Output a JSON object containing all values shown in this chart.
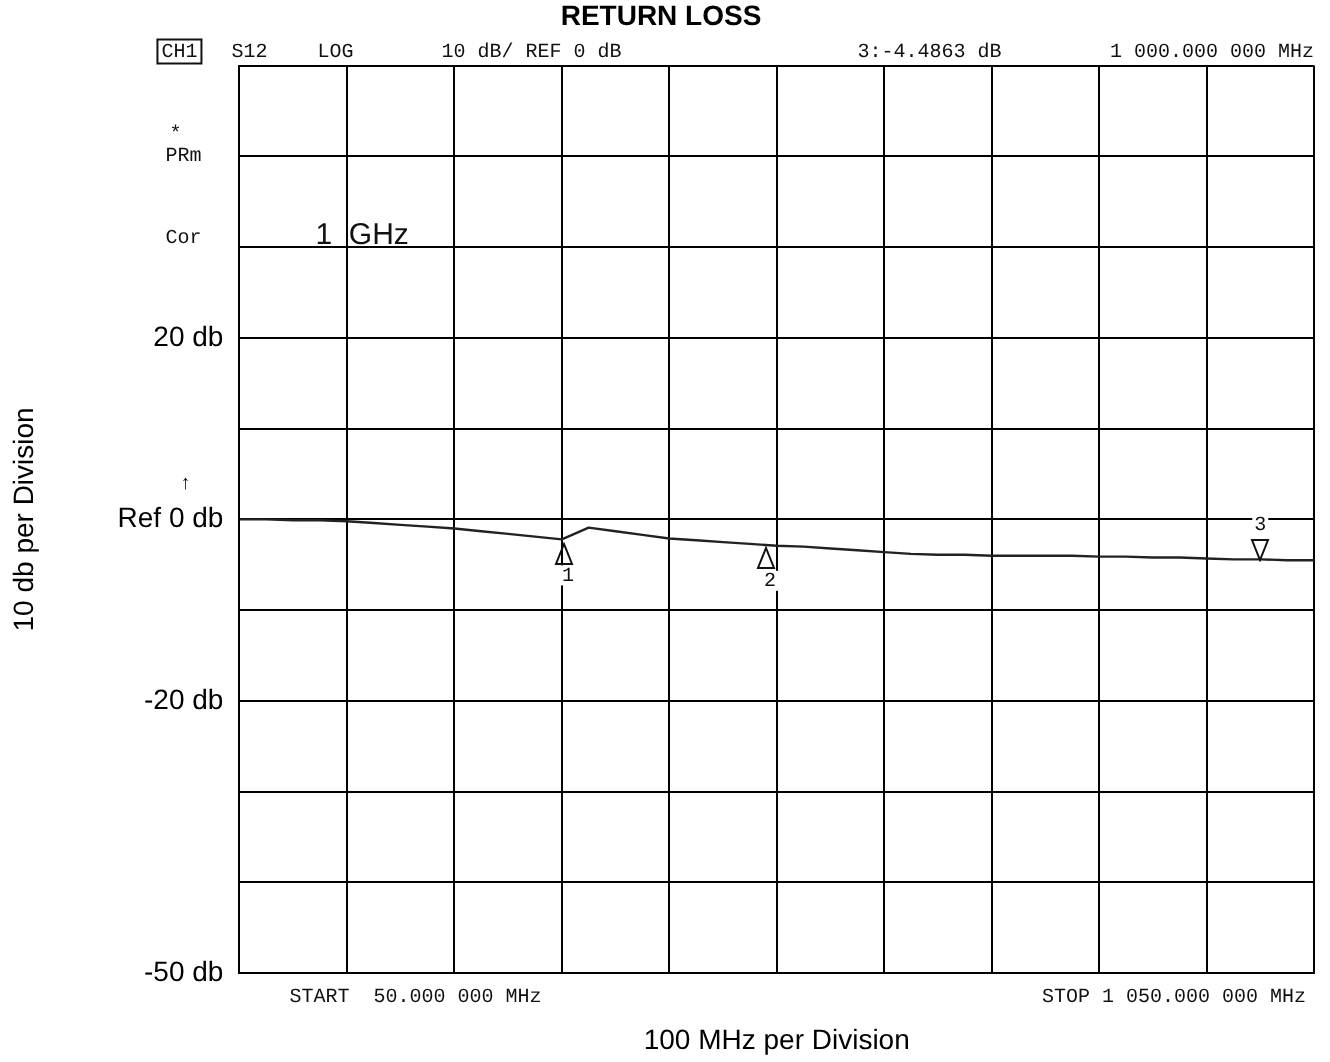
{
  "chart_data": {
    "type": "line",
    "title": "RETURN LOSS",
    "xlabel": "100 MHz per Division",
    "ylabel": "10 db per Division",
    "categories": [
      null,
      null,
      null,
      null,
      null,
      null,
      null,
      null,
      null,
      null,
      null,
      null,
      null,
      null,
      null,
      null,
      null,
      null,
      null,
      null,
      null,
      null,
      null,
      null,
      null,
      null,
      null,
      null,
      null,
      null,
      null,
      null,
      null,
      null,
      null,
      null,
      null,
      null,
      null,
      null,
      null
    ],
    "series": [
      {
        "color": "#222222",
        "values": [
          0,
          0,
          -0.1,
          -0.1,
          -0.2,
          -0.4,
          -0.6,
          -0.8,
          -1.0,
          -1.3,
          -1.6,
          -1.9,
          -2.2,
          -0.9,
          -1.3,
          -1.7,
          -2.1,
          -2.3,
          -2.5,
          -2.7,
          -2.9,
          -3.0,
          -3.2,
          -3.4,
          -3.6,
          -3.8,
          -3.9,
          -3.9,
          -4.0,
          -4.0,
          -4.0,
          -4.0,
          -4.1,
          -4.1,
          -4.2,
          -4.2,
          -4.3,
          -4.4,
          -4.4,
          -4.5,
          -4.5
        ]
      }
    ],
    "ylim": [
      -50,
      50
    ],
    "yticks": [
      {
        "value": -50,
        "label": "-50 db"
      },
      {
        "value": -40,
        "label": null
      },
      {
        "value": -30,
        "label": null
      },
      {
        "value": -20,
        "label": "-20 db"
      },
      {
        "value": -10,
        "label": null
      },
      {
        "value": 0,
        "label": "Ref 0 db"
      },
      {
        "value": 10,
        "label": null
      },
      {
        "value": 20,
        "label": "20 db"
      },
      {
        "value": 30,
        "label": null
      },
      {
        "value": 40,
        "label": null
      },
      {
        "value": 50,
        "label": null
      }
    ],
    "grid": true,
    "legend": false,
    "marker": "none",
    "line_style": "solid",
    "tick_labels": "y",
    "annotations": [
      "CH1",
      "S12",
      "LOG",
      "10 dB/ REF 0 dB",
      "3:-4.4863 dB",
      "1 000.000 000 MHz",
      "*",
      "PRm",
      "Cor",
      "1  GHz",
      "↑",
      "START  50.000 000 MHz",
      "STOP 1 050.000 000 MHz",
      "1",
      "2",
      "3"
    ]
  }
}
